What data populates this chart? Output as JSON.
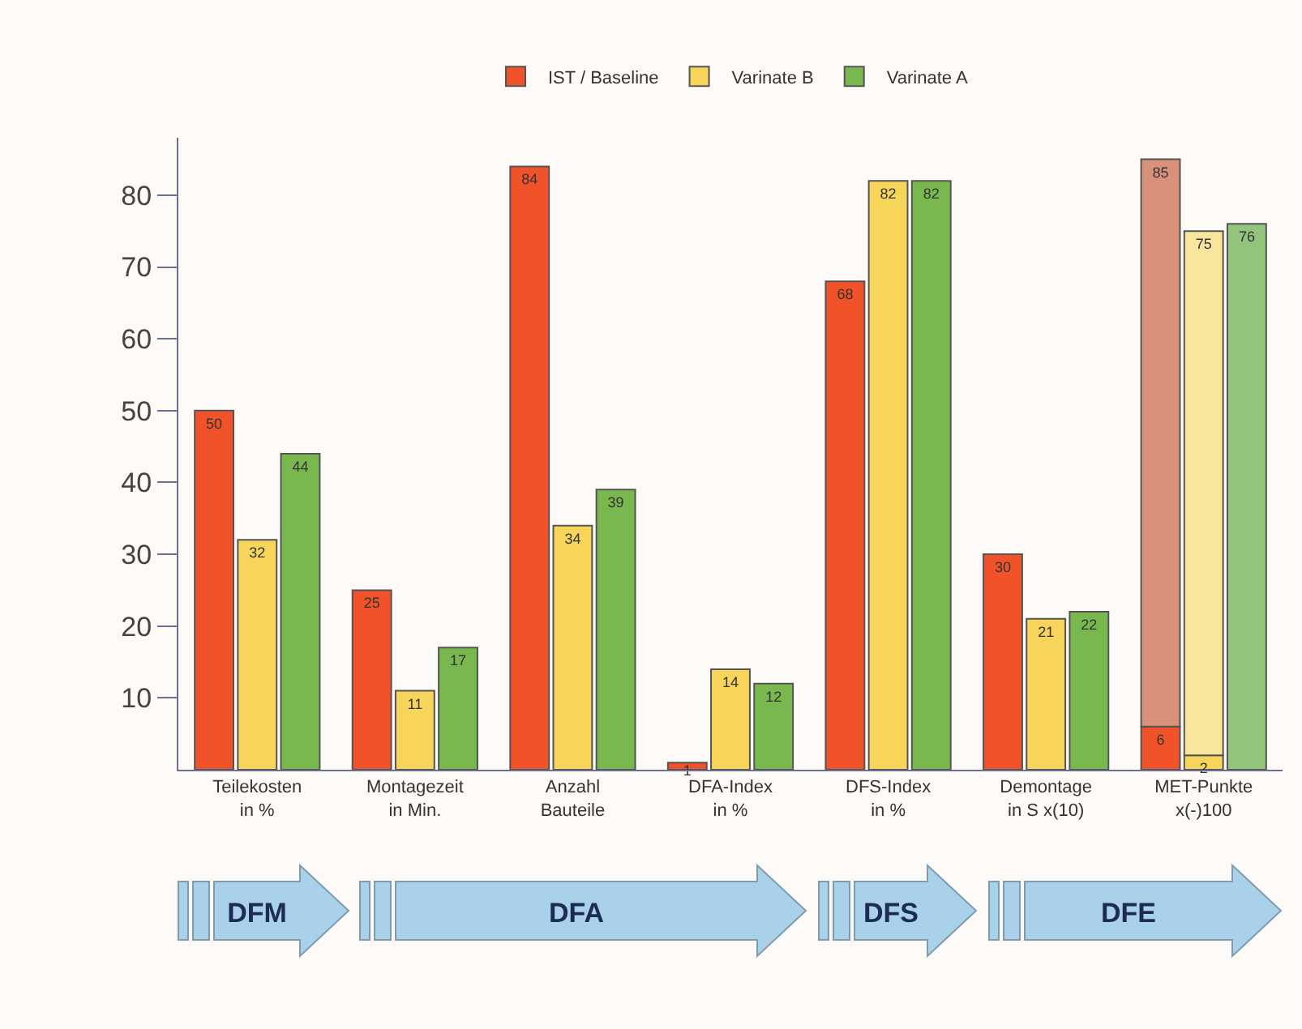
{
  "chart_data": {
    "type": "bar",
    "categories": [
      "Teilekosten\nin %",
      "Montagezeit\nin Min.",
      "Anzahl\nBauteile",
      "DFA-Index\nin %",
      "DFS-Index\nin %",
      "Demontage\nin S x(10)",
      "MET-Punkte\nx(-)100"
    ],
    "series": [
      {
        "name": "IST / Baseline",
        "color": "#f0522a",
        "values": [
          50,
          25,
          84,
          1,
          68,
          30,
          6
        ]
      },
      {
        "color": "#d9917c",
        "base": [
          null,
          null,
          null,
          null,
          null,
          null,
          6
        ],
        "values": [
          null,
          null,
          null,
          null,
          null,
          null,
          79
        ],
        "value_labels": [
          null,
          null,
          null,
          null,
          null,
          null,
          "85"
        ]
      },
      {
        "name": "Varinate B",
        "color": "#f7d55a",
        "values": [
          32,
          11,
          34,
          14,
          82,
          21,
          2
        ]
      },
      {
        "color": "#f7e69c",
        "base": [
          null,
          null,
          null,
          null,
          null,
          null,
          2
        ],
        "values": [
          null,
          null,
          null,
          null,
          null,
          null,
          73
        ],
        "value_labels": [
          null,
          null,
          null,
          null,
          null,
          null,
          "75"
        ]
      },
      {
        "name": "Varinate A",
        "colors": [
          "#78b84e",
          "#78b84e",
          "#78b84e",
          "#78b84e",
          "#78b84e",
          "#78b84e",
          "#93c47c"
        ],
        "values": [
          44,
          17,
          39,
          12,
          82,
          22,
          76
        ]
      }
    ],
    "data_labels": true,
    "ylim": [
      0,
      88
    ],
    "yticks": [
      10,
      20,
      30,
      40,
      50,
      60,
      70,
      80
    ],
    "grid": false,
    "legend": "top",
    "annotations": [
      "DFM",
      "DFA",
      "DFS",
      "DFE"
    ]
  }
}
